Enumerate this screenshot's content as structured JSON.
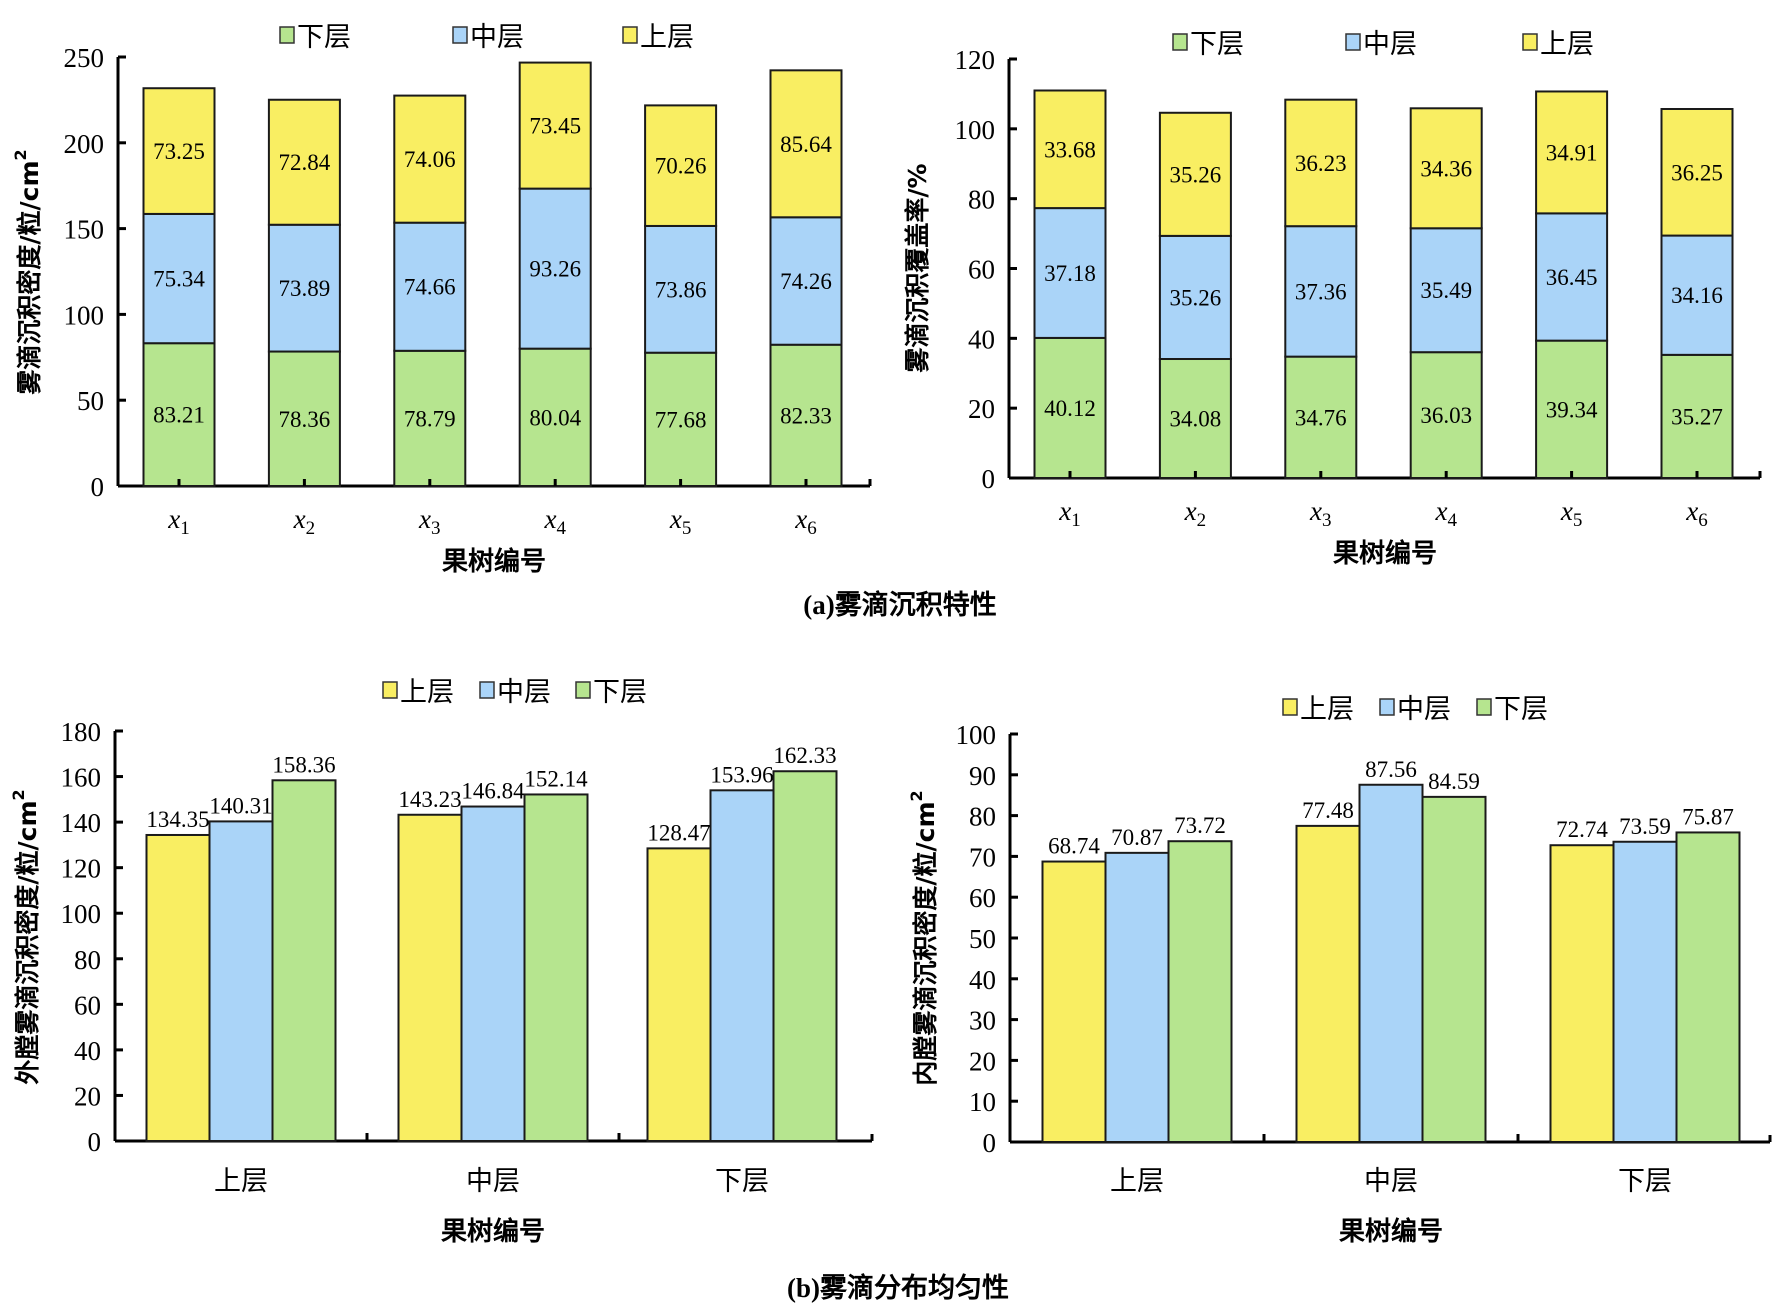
{
  "figure": {
    "caption_a": "(a)雾滴沉积特性",
    "caption_b": "(b)雾滴分布均匀性"
  },
  "colors": {
    "lower": "#b6e58f",
    "middle": "#aad4f8",
    "upper": "#f9ee62",
    "axis": "#000000"
  },
  "chart_data": [
    {
      "id": "deposition-density",
      "type": "bar",
      "stacked": true,
      "title": "",
      "xlabel": "果树编号",
      "ylabel": "雾滴沉积密度/粒/cm²",
      "ylabel_main": "雾滴沉积密度/粒/cm",
      "ylabel_sup": "2",
      "ylim": [
        0,
        250
      ],
      "yticks": [
        0,
        50,
        100,
        150,
        200,
        250
      ],
      "categories": [
        {
          "base": "x",
          "sub": "1"
        },
        {
          "base": "x",
          "sub": "2"
        },
        {
          "base": "x",
          "sub": "3"
        },
        {
          "base": "x",
          "sub": "4"
        },
        {
          "base": "x",
          "sub": "5"
        },
        {
          "base": "x",
          "sub": "6"
        }
      ],
      "legend": {
        "position": "top",
        "order": [
          "下层",
          "中层",
          "上层"
        ]
      },
      "series": [
        {
          "name": "下层",
          "color_key": "lower",
          "values": [
            83.21,
            78.36,
            78.79,
            80.04,
            77.68,
            82.33
          ]
        },
        {
          "name": "中层",
          "color_key": "middle",
          "values": [
            75.34,
            73.89,
            74.66,
            93.26,
            73.86,
            74.26
          ]
        },
        {
          "name": "上层",
          "color_key": "upper",
          "values": [
            73.25,
            72.84,
            74.06,
            73.45,
            70.26,
            85.64
          ]
        }
      ],
      "grid": false
    },
    {
      "id": "deposition-coverage",
      "type": "bar",
      "stacked": true,
      "title": "",
      "xlabel": "果树编号",
      "ylabel": "雾滴沉积覆盖率/%",
      "ylabel_main": "雾滴沉积覆盖率/%",
      "ylabel_sup": "",
      "ylim": [
        0,
        120
      ],
      "yticks": [
        0,
        20,
        40,
        60,
        80,
        100,
        120
      ],
      "categories": [
        {
          "base": "x",
          "sub": "1"
        },
        {
          "base": "x",
          "sub": "2"
        },
        {
          "base": "x",
          "sub": "3"
        },
        {
          "base": "x",
          "sub": "4"
        },
        {
          "base": "x",
          "sub": "5"
        },
        {
          "base": "x",
          "sub": "6"
        }
      ],
      "legend": {
        "position": "top",
        "order": [
          "下层",
          "中层",
          "上层"
        ]
      },
      "series": [
        {
          "name": "下层",
          "color_key": "lower",
          "values": [
            40.12,
            34.08,
            34.76,
            36.03,
            39.34,
            35.27
          ]
        },
        {
          "name": "中层",
          "color_key": "middle",
          "values": [
            37.18,
            35.26,
            37.36,
            35.49,
            36.45,
            34.16
          ]
        },
        {
          "name": "上层",
          "color_key": "upper",
          "values": [
            33.68,
            35.26,
            36.23,
            34.36,
            34.91,
            36.25
          ]
        }
      ],
      "grid": false
    },
    {
      "id": "outer-canopy-density",
      "type": "bar",
      "stacked": false,
      "title": "",
      "xlabel": "果树编号",
      "ylabel": "外膛雾滴沉积密度/粒/cm²",
      "ylabel_main": "外膛雾滴沉积密度/粒/cm",
      "ylabel_sup": "2",
      "ylim": [
        0,
        180
      ],
      "yticks": [
        0,
        20,
        40,
        60,
        80,
        100,
        120,
        140,
        160,
        180
      ],
      "categories": [
        "上层",
        "中层",
        "下层"
      ],
      "legend": {
        "position": "top",
        "order": [
          "上层",
          "中层",
          "下层"
        ]
      },
      "series": [
        {
          "name": "上层",
          "color_key": "upper",
          "values": [
            134.35,
            143.23,
            128.47
          ]
        },
        {
          "name": "中层",
          "color_key": "middle",
          "values": [
            140.31,
            146.84,
            153.96
          ]
        },
        {
          "name": "下层",
          "color_key": "lower",
          "values": [
            158.36,
            152.14,
            162.33
          ]
        }
      ],
      "grid": false
    },
    {
      "id": "inner-canopy-density",
      "type": "bar",
      "stacked": false,
      "title": "",
      "xlabel": "果树编号",
      "ylabel": "内膛雾滴沉积密度/粒/cm²",
      "ylabel_main": "内膛雾滴沉积密度/粒/cm",
      "ylabel_sup": "2",
      "ylim": [
        0,
        100
      ],
      "yticks": [
        0,
        10,
        20,
        30,
        40,
        50,
        60,
        70,
        80,
        90,
        100
      ],
      "categories": [
        "上层",
        "中层",
        "下层"
      ],
      "legend": {
        "position": "top",
        "order": [
          "上层",
          "中层",
          "下层"
        ]
      },
      "series": [
        {
          "name": "上层",
          "color_key": "upper",
          "values": [
            68.74,
            77.48,
            72.74
          ]
        },
        {
          "name": "中层",
          "color_key": "middle",
          "values": [
            70.87,
            87.56,
            73.59
          ]
        },
        {
          "name": "下层",
          "color_key": "lower",
          "values": [
            73.72,
            84.59,
            75.87
          ]
        }
      ],
      "grid": false
    }
  ]
}
